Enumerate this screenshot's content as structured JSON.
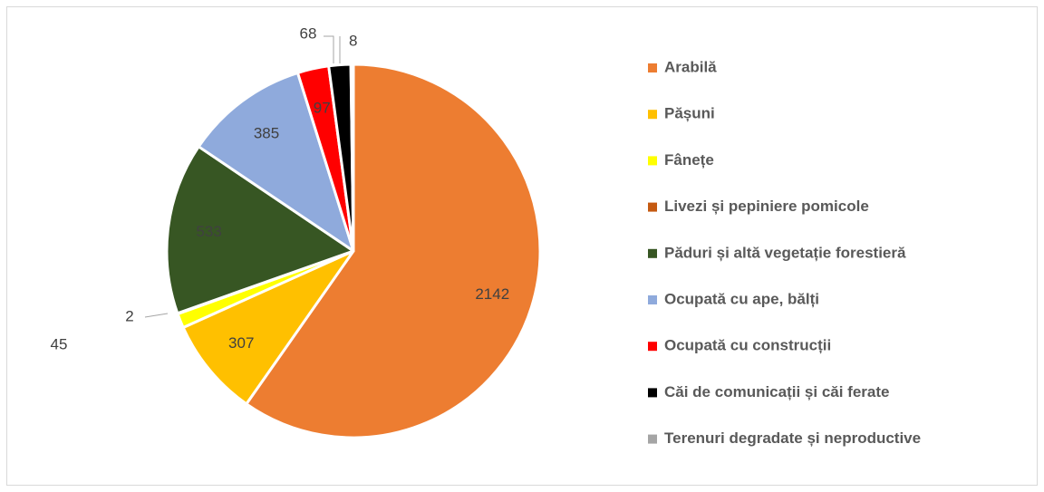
{
  "chart_data": {
    "type": "pie",
    "categories": [
      "Arabilă",
      "Pășuni",
      "Fânețe",
      "Livezi și pepiniere pomicole",
      "Păduri și altă vegetație forestieră",
      "Ocupată cu ape, bălți",
      "Ocupată cu construcții",
      "Căi de comunicații și căi ferate",
      "Terenuri degradate și neproductive"
    ],
    "values": [
      2142,
      307,
      45,
      2,
      533,
      385,
      97,
      68,
      8
    ],
    "colors": [
      "#ed7d31",
      "#ffc000",
      "#ffff00",
      "#c55a11",
      "#375623",
      "#8faadc",
      "#ff0000",
      "#000000",
      "#a5a5a5"
    ],
    "legend": "right"
  }
}
